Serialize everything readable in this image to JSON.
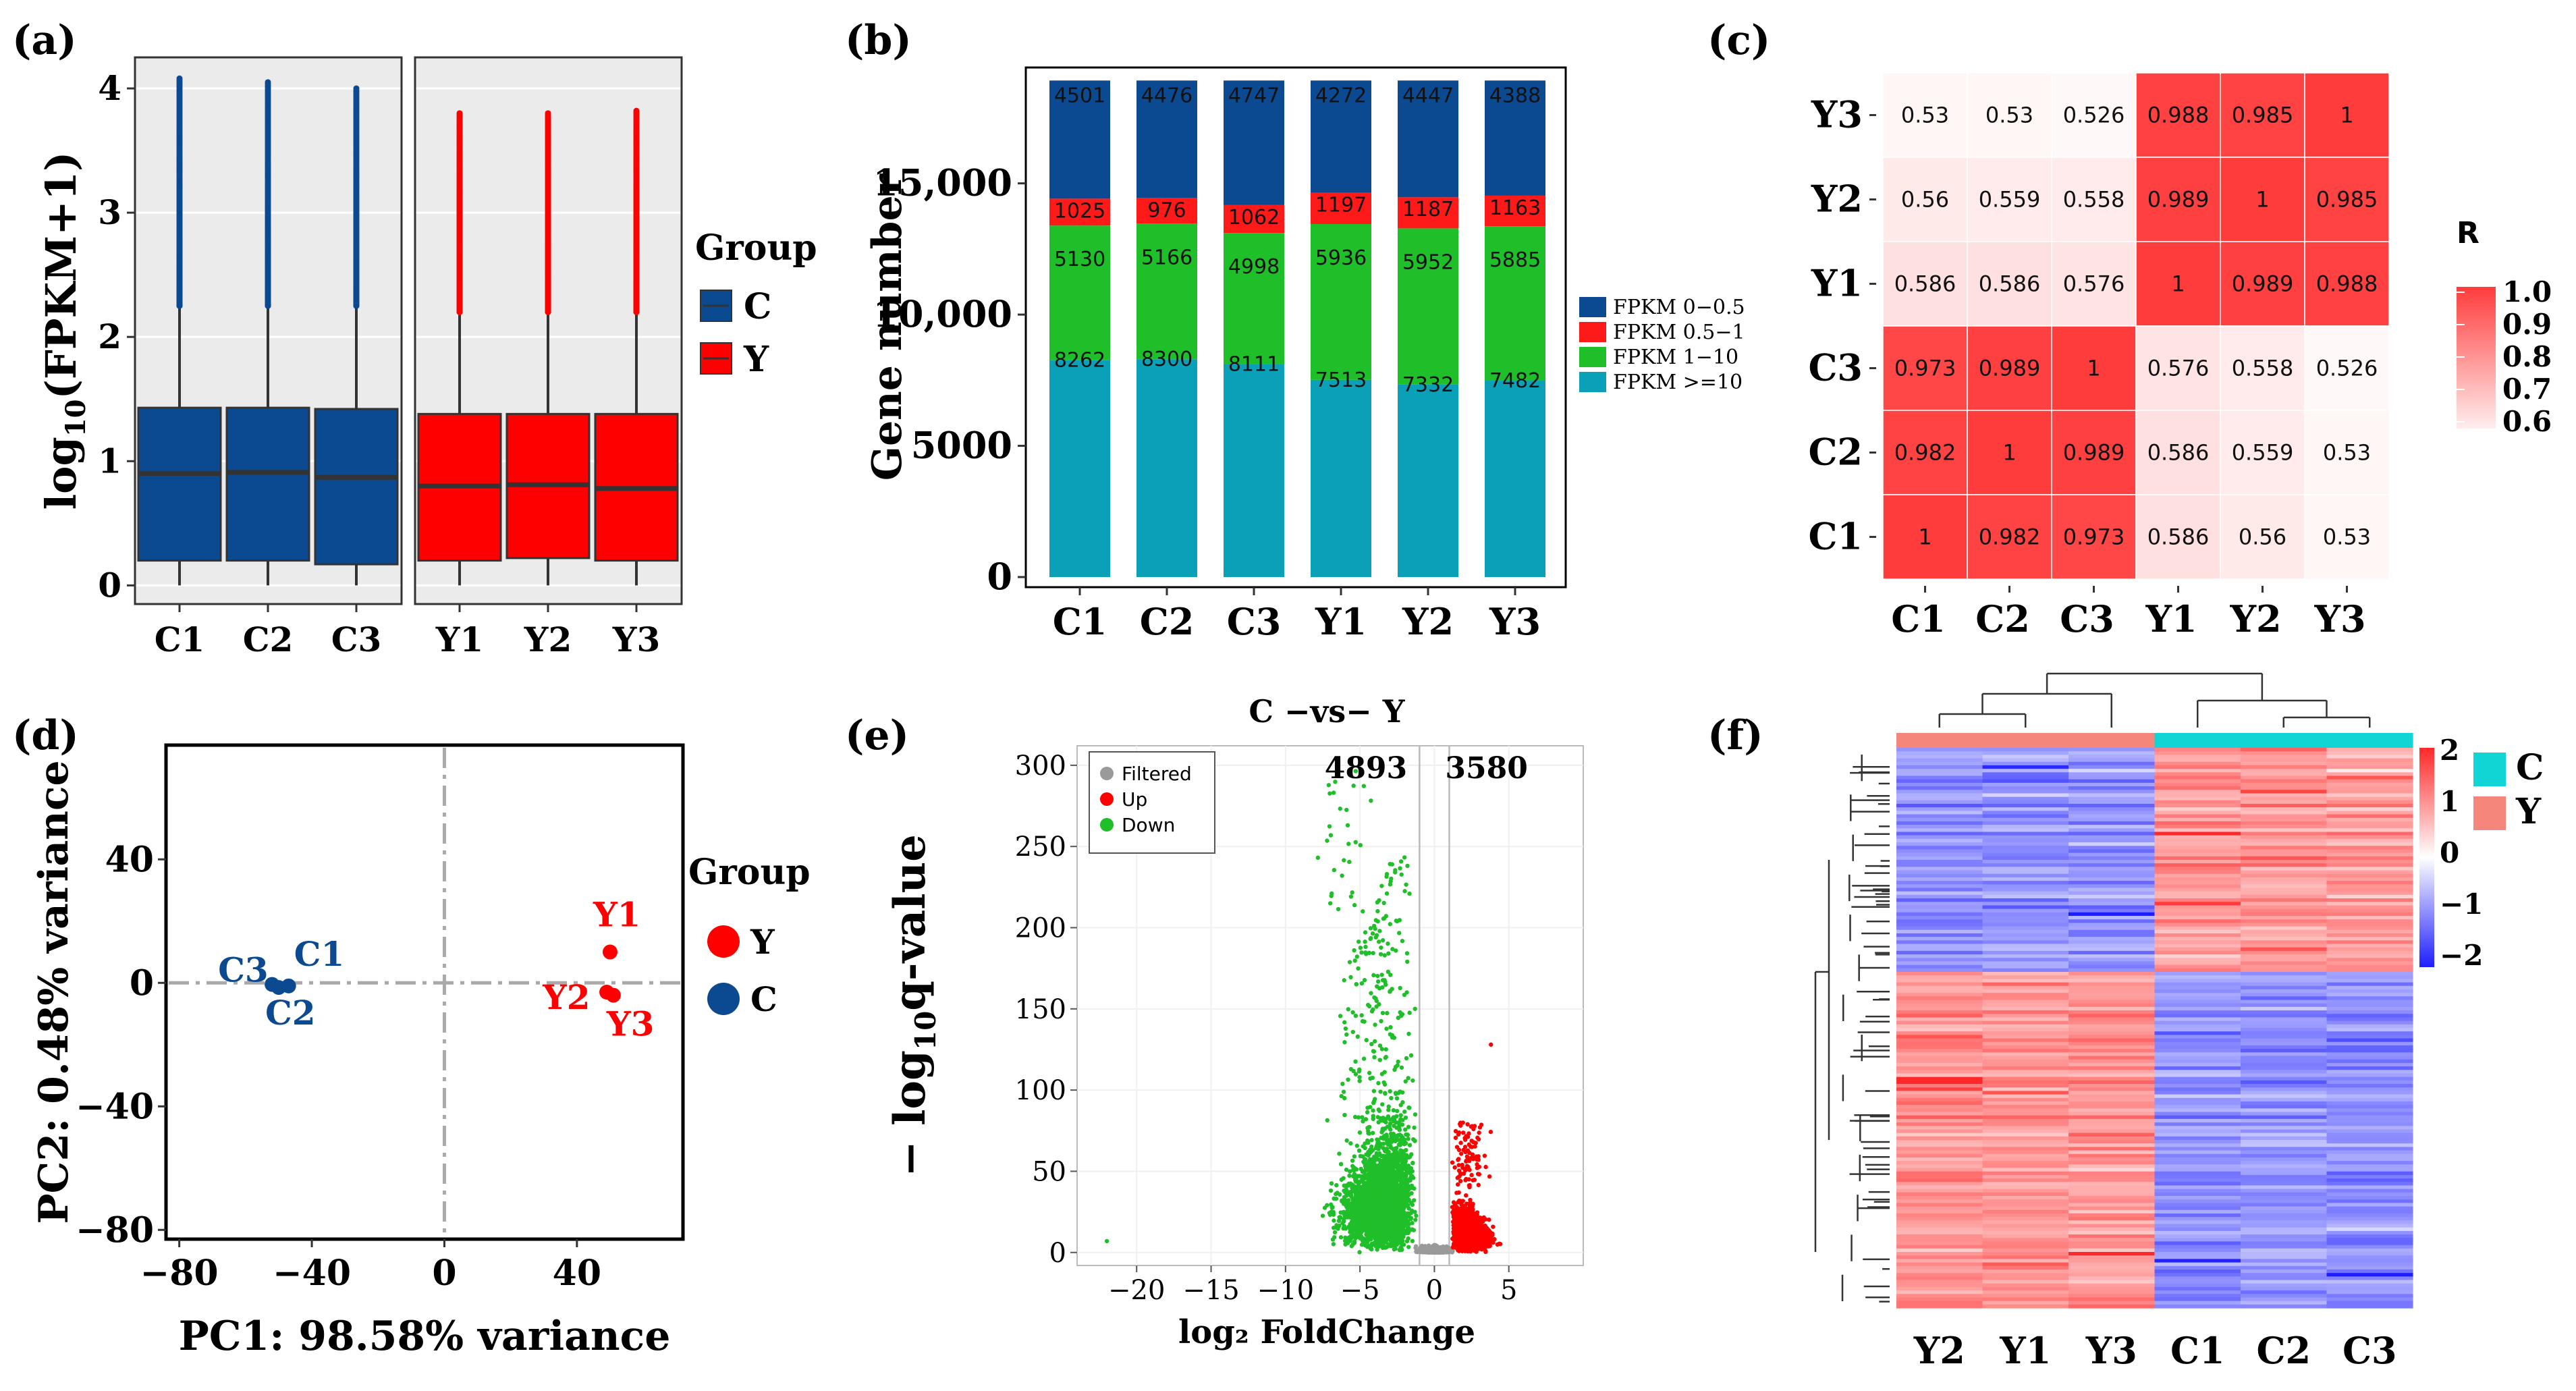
{
  "panel_labels": [
    "(a)",
    "(b)",
    "(c)",
    "(d)",
    "(e)",
    "(f)"
  ],
  "colors": {
    "C": "#0b4a91",
    "Y": "#ff0000",
    "fpkm_0_05": "#0b4a91",
    "fpkm_05_1": "#ff1a1a",
    "fpkm_1_10": "#1fbf2a",
    "fpkm_ge10": "#0aa0b8",
    "up": "#ff0000",
    "down": "#1fbf2a",
    "filtered": "#9a9a9a",
    "heat_high": "#ff3030",
    "heat_low": "#2020ff",
    "annot_C": "#11d5d5",
    "annot_Y": "#f4867c"
  },
  "chart_data": [
    {
      "id": "a",
      "type": "box",
      "title": "",
      "ylabel": "log10(FPKM+1)",
      "ylabel_main": "log",
      "ylabel_sub": "10",
      "ylabel_tail": "(FPKM+1)",
      "ylim": [
        -0.15,
        4.25
      ],
      "yticks": [
        0,
        1,
        2,
        3,
        4
      ],
      "ytick_labels": [
        "0",
        "1",
        "2",
        "3",
        "4"
      ],
      "legend": {
        "title": "Group",
        "items": [
          "C",
          "Y"
        ]
      },
      "facets": [
        {
          "group": "C",
          "samples": [
            {
              "name": "C1",
              "min": 0.0,
              "q1": 0.2,
              "median": 0.9,
              "q3": 1.43,
              "whisker_hi": 2.25,
              "outlier_max": 4.08
            },
            {
              "name": "C2",
              "min": 0.0,
              "q1": 0.2,
              "median": 0.91,
              "q3": 1.43,
              "whisker_hi": 2.25,
              "outlier_max": 4.05
            },
            {
              "name": "C3",
              "min": 0.0,
              "q1": 0.17,
              "median": 0.87,
              "q3": 1.42,
              "whisker_hi": 2.25,
              "outlier_max": 4.0
            }
          ]
        },
        {
          "group": "Y",
          "samples": [
            {
              "name": "Y1",
              "min": 0.0,
              "q1": 0.2,
              "median": 0.8,
              "q3": 1.38,
              "whisker_hi": 2.2,
              "outlier_max": 3.8
            },
            {
              "name": "Y2",
              "min": 0.0,
              "q1": 0.22,
              "median": 0.81,
              "q3": 1.38,
              "whisker_hi": 2.2,
              "outlier_max": 3.8
            },
            {
              "name": "Y3",
              "min": 0.0,
              "q1": 0.2,
              "median": 0.78,
              "q3": 1.38,
              "whisker_hi": 2.2,
              "outlier_max": 3.82
            }
          ]
        }
      ]
    },
    {
      "id": "b",
      "type": "bar",
      "stacked": true,
      "ylabel": "Gene number",
      "ylim": [
        0,
        18900
      ],
      "yticks": [
        0,
        5000,
        10000,
        15000
      ],
      "ytick_labels": [
        "0",
        "5000",
        "10,000",
        "15,000"
      ],
      "categories": [
        "C1",
        "C2",
        "C3",
        "Y1",
        "Y2",
        "Y3"
      ],
      "series": [
        {
          "name": "FPKM >=10",
          "values": [
            8262,
            8300,
            8111,
            7513,
            7332,
            7482
          ],
          "labels": [
            "8262",
            "8300",
            "8111",
            "7513",
            "7332",
            "7482"
          ]
        },
        {
          "name": "FPKM 1−10",
          "values": [
            5130,
            5166,
            4998,
            5936,
            5952,
            5885
          ],
          "labels": [
            "5130",
            "5166",
            "4998",
            "5936",
            "5952",
            "5885"
          ]
        },
        {
          "name": "FPKM 0.5−1",
          "values": [
            1025,
            976,
            1062,
            1197,
            1187,
            1163
          ],
          "labels": [
            "1025",
            "976",
            "1062",
            "1197",
            "1187",
            "1163"
          ]
        },
        {
          "name": "FPKM 0−0.5",
          "values": [
            4501,
            4476,
            4747,
            4272,
            4447,
            4388
          ],
          "labels": [
            "4501",
            "4476",
            "4747",
            "4272",
            "4447",
            "4388"
          ]
        }
      ],
      "legend_order": [
        "FPKM 0−0.5",
        "FPKM 0.5−1",
        "FPKM 1−10",
        "FPKM >=10"
      ]
    },
    {
      "id": "c",
      "type": "heatmap",
      "legend_title": "R",
      "legend_ticks": [
        "1.0",
        "0.9",
        "0.8",
        "0.7",
        "0.6"
      ],
      "rows": [
        "Y3",
        "Y2",
        "Y1",
        "C3",
        "C2",
        "C1"
      ],
      "cols": [
        "C1",
        "C2",
        "C3",
        "Y1",
        "Y2",
        "Y3"
      ],
      "values": [
        [
          "0.53",
          "0.53",
          "0.526",
          "0.988",
          "0.985",
          "1"
        ],
        [
          "0.56",
          "0.559",
          "0.558",
          "0.989",
          "1",
          "0.985"
        ],
        [
          "0.586",
          "0.586",
          "0.576",
          "1",
          "0.989",
          "0.988"
        ],
        [
          "0.973",
          "0.989",
          "1",
          "0.576",
          "0.558",
          "0.526"
        ],
        [
          "0.982",
          "1",
          "0.989",
          "0.586",
          "0.559",
          "0.53"
        ],
        [
          "1",
          "0.982",
          "0.973",
          "0.586",
          "0.56",
          "0.53"
        ]
      ]
    },
    {
      "id": "d",
      "type": "scatter",
      "xlabel": "PC1: 98.58% variance",
      "ylabel": "PC2: 0.48% variance",
      "xlim": [
        -84,
        72
      ],
      "ylim": [
        -83,
        77
      ],
      "xticks": [
        -80,
        -40,
        0,
        40
      ],
      "xtick_labels": [
        "−80",
        "−40",
        "0",
        "40"
      ],
      "yticks": [
        -80,
        -40,
        0,
        40
      ],
      "ytick_labels": [
        "−80",
        "−40",
        "0",
        "40"
      ],
      "legend": {
        "title": "Group",
        "items": [
          "Y",
          "C"
        ]
      },
      "points": [
        {
          "label": "C1",
          "group": "C",
          "x": -47,
          "y": -1
        },
        {
          "label": "C2",
          "group": "C",
          "x": -50,
          "y": -1.5
        },
        {
          "label": "C3",
          "group": "C",
          "x": -52,
          "y": -0.5
        },
        {
          "label": "Y1",
          "group": "Y",
          "x": 50,
          "y": 10
        },
        {
          "label": "Y2",
          "group": "Y",
          "x": 49,
          "y": -3
        },
        {
          "label": "Y3",
          "group": "Y",
          "x": 51,
          "y": -4
        }
      ]
    },
    {
      "id": "e",
      "type": "scatter",
      "subtype": "volcano",
      "title": "C −vs− Y",
      "xlabel": "log₂ FoldChange",
      "ylabel": "− log10q-value",
      "ylabel_main": "− log",
      "ylabel_sub": "10",
      "ylabel_tail": "q-value",
      "xlim": [
        -24,
        10
      ],
      "ylim": [
        -8,
        312
      ],
      "xticks": [
        -20,
        -15,
        -10,
        -5,
        0,
        5
      ],
      "xtick_labels": [
        "−20",
        "−15",
        "−10",
        "−5",
        "0",
        "5"
      ],
      "yticks": [
        0,
        50,
        100,
        150,
        200,
        250,
        300
      ],
      "ytick_labels": [
        "0",
        "50",
        "100",
        "150",
        "200",
        "250",
        "300"
      ],
      "thresholds": [
        -1,
        1
      ],
      "down_count": "4893",
      "up_count": "3580",
      "legend": [
        "Filtered",
        "Up",
        "Down"
      ]
    },
    {
      "id": "f",
      "type": "heatmap",
      "subtype": "clustered",
      "cols": [
        "Y2",
        "Y1",
        "Y3",
        "C1",
        "C2",
        "C3"
      ],
      "col_groups": [
        "Y",
        "Y",
        "Y",
        "C",
        "C",
        "C"
      ],
      "scale_ticks": [
        "2",
        "1",
        "0",
        "−1",
        "−2"
      ],
      "annotation_legend": [
        "C",
        "Y"
      ],
      "row_clusters": [
        {
          "fraction": 0.4,
          "Y_sign": -1
        },
        {
          "fraction": 0.6,
          "Y_sign": 1
        }
      ]
    }
  ]
}
